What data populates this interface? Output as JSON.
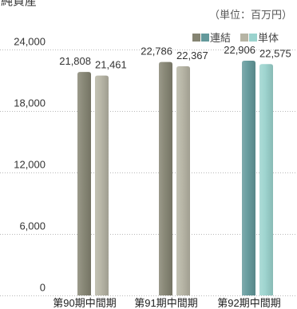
{
  "chart_data": {
    "type": "bar",
    "title": "純資産",
    "unit_label": "（単位：百万円）",
    "categories": [
      "第90期中間期",
      "第91期中間期",
      "第92期中間期"
    ],
    "series": [
      {
        "name": "連結",
        "values": [
          21808,
          22786,
          22906
        ],
        "labels": [
          "21,808",
          "22,786",
          "22,906"
        ],
        "colors": [
          "#858472",
          "#858472",
          "#63999b"
        ],
        "legend_swatches": [
          "#858472",
          "#63999b"
        ]
      },
      {
        "name": "単体",
        "values": [
          21461,
          22367,
          22575
        ],
        "labels": [
          "21,461",
          "22,367",
          "22,575"
        ],
        "colors": [
          "#b6b4a4",
          "#b6b4a4",
          "#9bd3ce"
        ],
        "legend_swatches": [
          "#b6b4a4",
          "#9bd3ce"
        ]
      }
    ],
    "ylim": [
      0,
      24000
    ],
    "yticks": [
      0,
      6000,
      12000,
      18000,
      24000
    ],
    "ytick_labels": [
      "0",
      "6,000",
      "12,000",
      "18,000",
      "24,000"
    ],
    "grid": true,
    "legend_position": "top-right"
  }
}
